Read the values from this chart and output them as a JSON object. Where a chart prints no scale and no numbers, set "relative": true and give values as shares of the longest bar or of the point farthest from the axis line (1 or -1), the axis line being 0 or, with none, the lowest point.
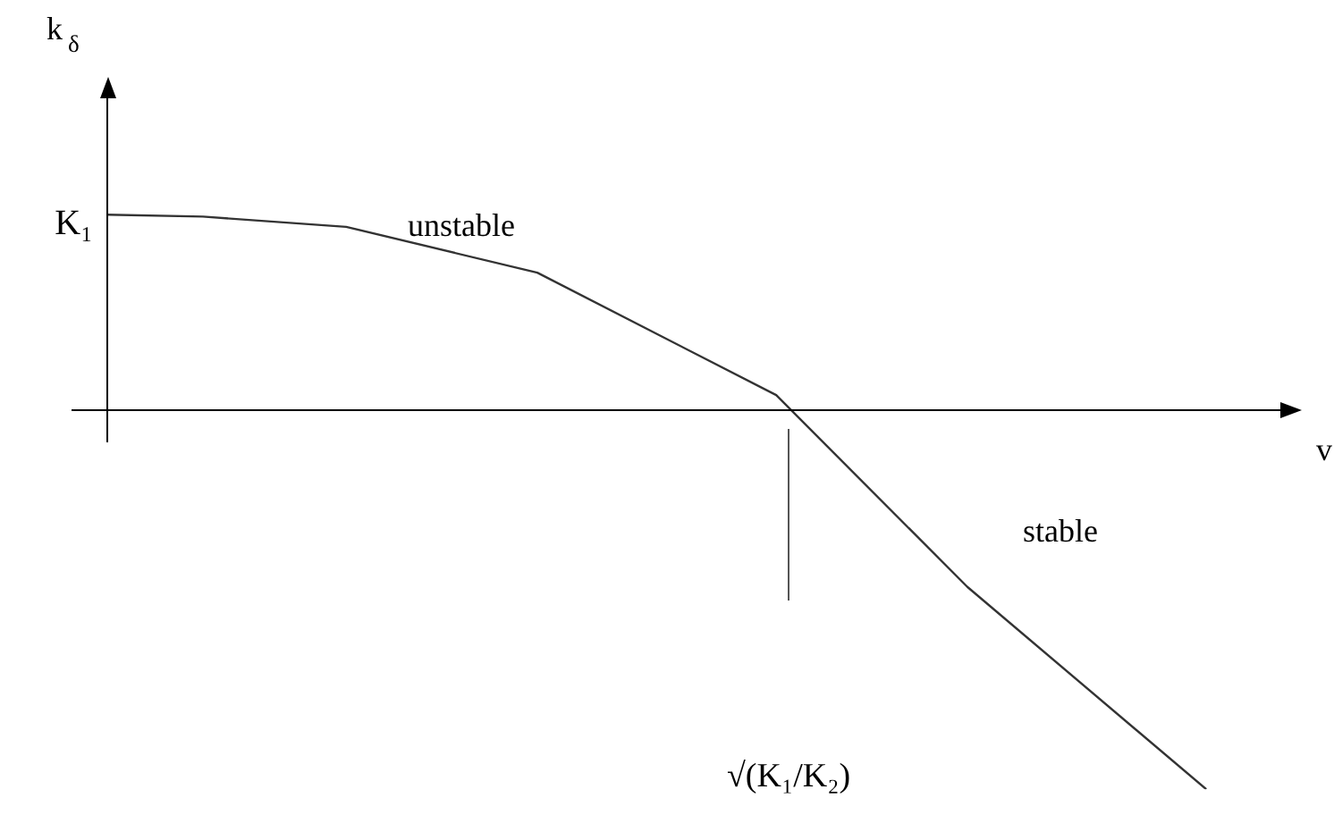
{
  "chart_data": {
    "type": "line",
    "relative": true,
    "xlabel": "v",
    "marker": "none",
    "line_style": "solid",
    "categories": [
      null,
      null,
      null,
      null,
      null,
      null,
      null,
      null,
      null,
      null,
      null,
      null,
      null,
      null,
      null,
      null,
      null,
      null,
      null,
      null,
      null,
      null,
      null,
      null,
      null,
      null
    ],
    "series": [
      {
        "color": "#333333",
        "values": [
          0.516,
          null,
          0.511,
          null,
          null,
          0.484,
          null,
          null,
          null,
          0.363,
          null,
          null,
          null,
          null,
          0.04,
          null,
          null,
          null,
          -0.466,
          null,
          null,
          null,
          null,
          -1,
          null,
          null
        ]
      }
    ],
    "annotations": [
      "k$_{δ}$",
      "K₁",
      "unstable",
      "stable",
      "√(K₁/K₂)"
    ]
  }
}
